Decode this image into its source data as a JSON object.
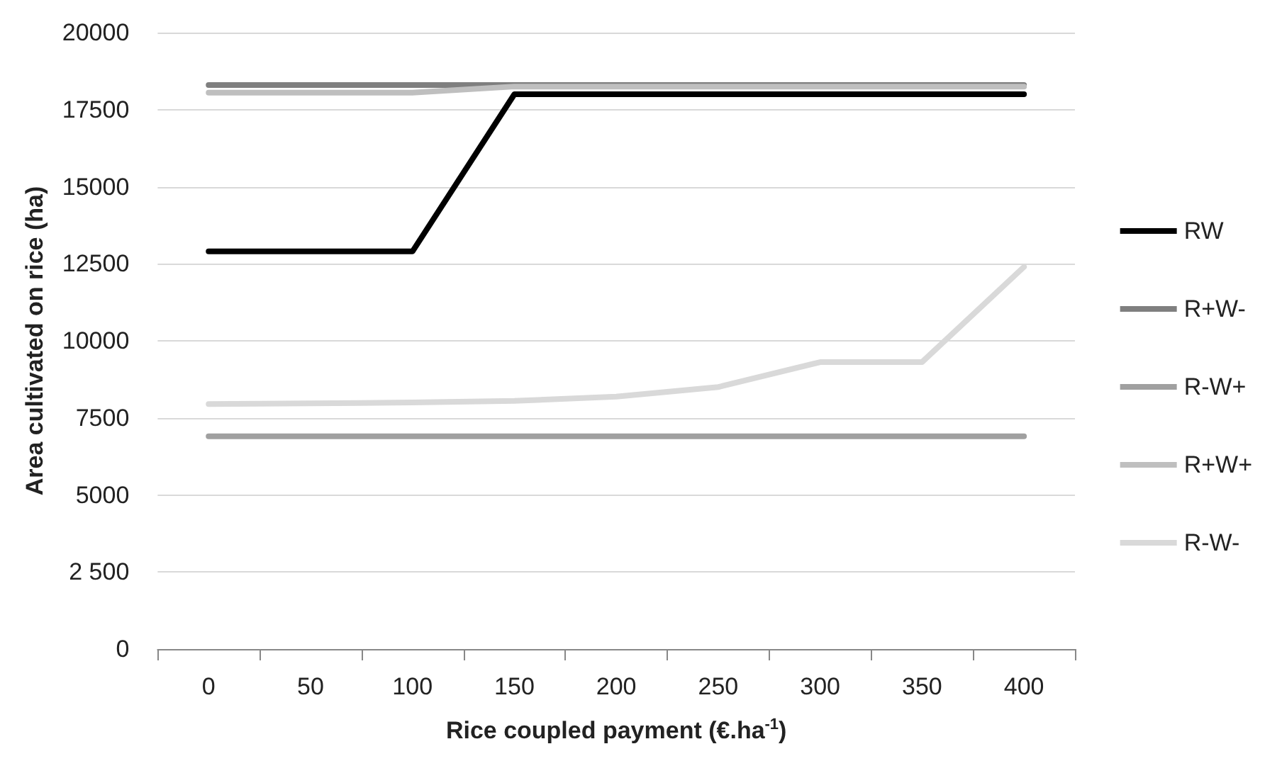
{
  "chart_data": {
    "type": "line",
    "xlabel": "Rice coupled payment (€.ha$^{-1}$)",
    "ylabel": "Area cultivated on rice (ha)",
    "categories": [
      "0",
      "50",
      "100",
      "150",
      "200",
      "250",
      "300",
      "350",
      "400"
    ],
    "series": [
      {
        "name": "RW",
        "color": "#000000",
        "values": [
          12900,
          12900,
          12900,
          18000,
          18000,
          18000,
          18000,
          18000,
          18000
        ]
      },
      {
        "name": "R+W-",
        "color": "#7f7f7f",
        "values": [
          18300,
          18300,
          18300,
          18300,
          18300,
          18300,
          18300,
          18300,
          18300
        ]
      },
      {
        "name": "R-W+",
        "color": "#a0a0a0",
        "values": [
          6900,
          6900,
          6900,
          6900,
          6900,
          6900,
          6900,
          6900,
          6900
        ]
      },
      {
        "name": "R+W+",
        "color": "#bfbfbf",
        "values": [
          18050,
          18050,
          18050,
          18250,
          18250,
          18250,
          18250,
          18250,
          18250
        ]
      },
      {
        "name": "R-W-",
        "color": "#d9d9d9",
        "values": [
          7950,
          7970,
          8000,
          8050,
          8190,
          8500,
          9310,
          9310,
          12400
        ]
      }
    ],
    "ylim": [
      0,
      20000
    ],
    "yticks": [
      0,
      {
        "value": 2500,
        "label": "2 500"
      },
      5000,
      7500,
      10000,
      12500,
      15000,
      17500,
      20000
    ],
    "grid": "y",
    "legend": "right",
    "marker": "none",
    "line_style": "solid"
  }
}
